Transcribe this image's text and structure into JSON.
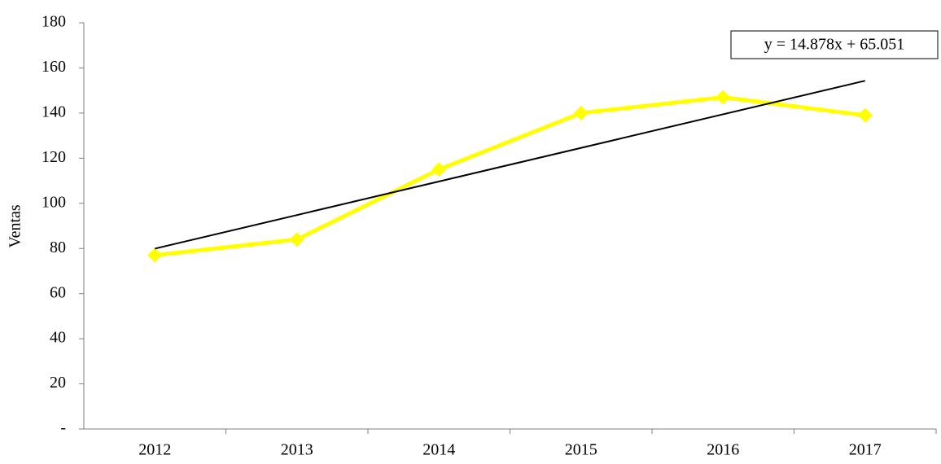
{
  "chart_data": {
    "type": "line",
    "y_label": "Ventas",
    "categories": [
      "2012",
      "2013",
      "2014",
      "2015",
      "2016",
      "2017"
    ],
    "series": [
      {
        "name": "Ventas",
        "color": "#ffff00",
        "values": [
          77,
          84,
          115,
          140,
          147,
          139
        ]
      }
    ],
    "trendline": {
      "label": "y = 14.878x + 65.051",
      "slope": 14.878,
      "intercept": 65.051,
      "color": "#000000"
    },
    "ylim": [
      0,
      180
    ],
    "yticks": [
      {
        "value": 0,
        "label": "-"
      },
      20,
      40,
      60,
      80,
      100,
      120,
      140,
      160,
      180
    ]
  }
}
